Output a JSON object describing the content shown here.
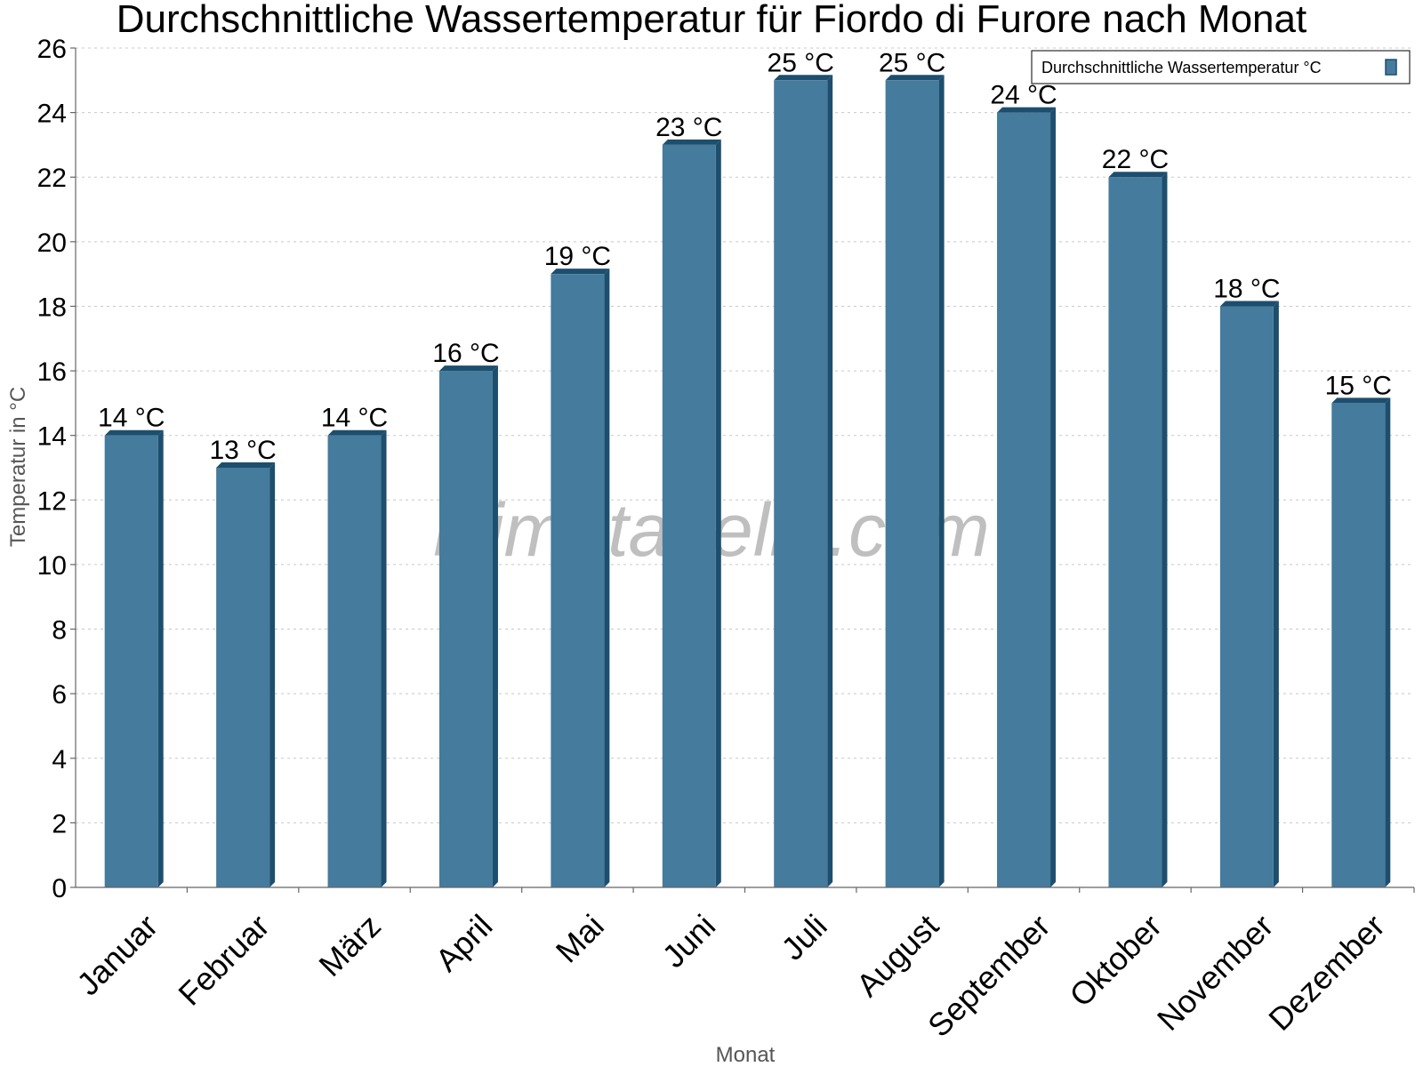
{
  "chart_data": {
    "type": "bar",
    "title": "Durchschnittliche Wassertemperatur für Fiordo di Furore nach Monat",
    "xlabel": "Monat",
    "ylabel": "Temperatur in °C",
    "ylim": [
      0,
      26
    ],
    "yticks": [
      0,
      2,
      4,
      6,
      8,
      10,
      12,
      14,
      16,
      18,
      20,
      22,
      24,
      26
    ],
    "grid": true,
    "legend_position": "top-right",
    "categories": [
      "Januar",
      "Februar",
      "März",
      "April",
      "Mai",
      "Juni",
      "Juli",
      "August",
      "September",
      "Oktober",
      "November",
      "Dezember"
    ],
    "series": [
      {
        "name": "Durchschnittliche Wassertemperatur °C",
        "color": "#457b9d",
        "values": [
          14,
          13,
          14,
          16,
          19,
          23,
          25,
          25,
          24,
          22,
          18,
          15
        ],
        "labels": [
          "14 °C",
          "13 °C",
          "14 °C",
          "16 °C",
          "19 °C",
          "23 °C",
          "25 °C",
          "25 °C",
          "24 °C",
          "22 °C",
          "18 °C",
          "15 °C"
        ]
      }
    ],
    "watermark": "klimatabelle.com"
  },
  "colors": {
    "bar_face": "#457b9d",
    "bar_depth": "#1d4e6e"
  }
}
